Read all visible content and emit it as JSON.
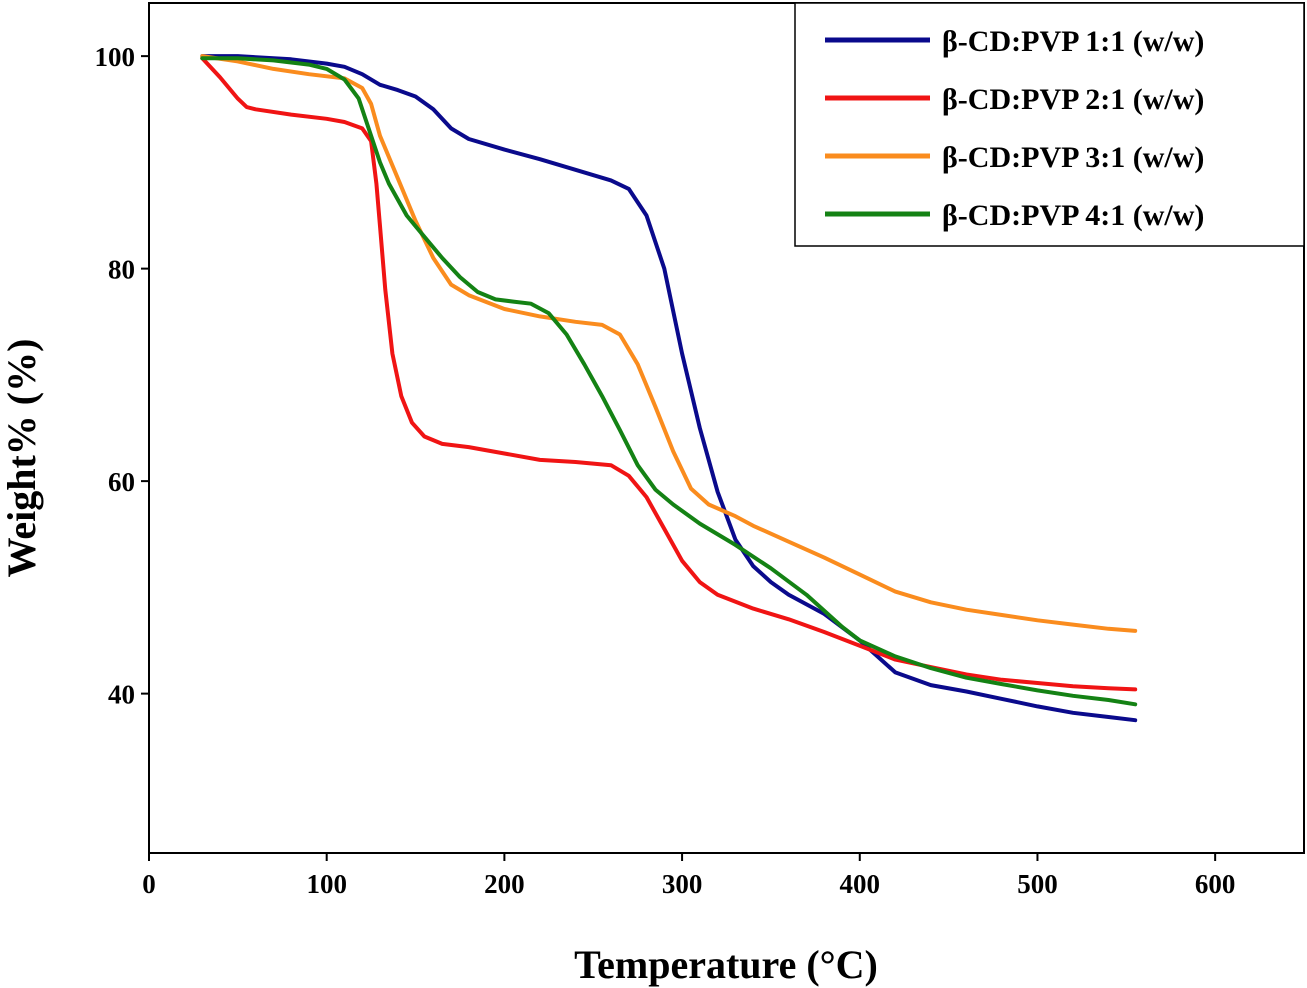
{
  "chart_data": {
    "type": "line",
    "title": "",
    "xlabel": "Temperature (°C)",
    "ylabel": "Weight% (%)",
    "xlim": [
      0,
      650
    ],
    "ylim": [
      25,
      105
    ],
    "x_ticks": [
      0,
      100,
      200,
      300,
      400,
      500,
      600
    ],
    "y_ticks": [
      40,
      60,
      80,
      100
    ],
    "grid": false,
    "legend_position": "top-right",
    "series": [
      {
        "name": "β-CD:PVP 1:1 (w/w)",
        "color": "#0a0a8c",
        "points": [
          [
            30,
            100
          ],
          [
            50,
            100
          ],
          [
            80,
            99.7
          ],
          [
            100,
            99.3
          ],
          [
            110,
            99
          ],
          [
            120,
            98.3
          ],
          [
            130,
            97.3
          ],
          [
            140,
            96.8
          ],
          [
            150,
            96.2
          ],
          [
            160,
            95
          ],
          [
            170,
            93.2
          ],
          [
            180,
            92.2
          ],
          [
            200,
            91.2
          ],
          [
            220,
            90.3
          ],
          [
            240,
            89.3
          ],
          [
            260,
            88.3
          ],
          [
            270,
            87.5
          ],
          [
            280,
            85
          ],
          [
            290,
            80
          ],
          [
            300,
            72
          ],
          [
            310,
            65
          ],
          [
            320,
            59
          ],
          [
            330,
            54.5
          ],
          [
            340,
            52
          ],
          [
            350,
            50.5
          ],
          [
            360,
            49.3
          ],
          [
            380,
            47.5
          ],
          [
            400,
            45
          ],
          [
            420,
            42
          ],
          [
            440,
            40.8
          ],
          [
            460,
            40.2
          ],
          [
            480,
            39.5
          ],
          [
            500,
            38.8
          ],
          [
            520,
            38.2
          ],
          [
            540,
            37.8
          ],
          [
            555,
            37.5
          ]
        ]
      },
      {
        "name": "β-CD:PVP 2:1 (w/w)",
        "color": "#f01414",
        "points": [
          [
            30,
            99.8
          ],
          [
            40,
            98
          ],
          [
            50,
            96
          ],
          [
            55,
            95.2
          ],
          [
            60,
            95
          ],
          [
            80,
            94.5
          ],
          [
            100,
            94.1
          ],
          [
            110,
            93.8
          ],
          [
            120,
            93.2
          ],
          [
            125,
            92
          ],
          [
            128,
            88
          ],
          [
            130,
            84
          ],
          [
            133,
            78
          ],
          [
            137,
            72
          ],
          [
            142,
            68
          ],
          [
            148,
            65.5
          ],
          [
            155,
            64.2
          ],
          [
            165,
            63.5
          ],
          [
            180,
            63.2
          ],
          [
            200,
            62.6
          ],
          [
            220,
            62
          ],
          [
            240,
            61.8
          ],
          [
            260,
            61.5
          ],
          [
            270,
            60.5
          ],
          [
            280,
            58.5
          ],
          [
            290,
            55.5
          ],
          [
            300,
            52.5
          ],
          [
            310,
            50.5
          ],
          [
            320,
            49.3
          ],
          [
            340,
            48
          ],
          [
            360,
            47
          ],
          [
            380,
            45.8
          ],
          [
            400,
            44.5
          ],
          [
            420,
            43.2
          ],
          [
            440,
            42.5
          ],
          [
            460,
            41.8
          ],
          [
            480,
            41.3
          ],
          [
            500,
            41
          ],
          [
            520,
            40.7
          ],
          [
            540,
            40.5
          ],
          [
            555,
            40.4
          ]
        ]
      },
      {
        "name": "β-CD:PVP 3:1 (w/w)",
        "color": "#fa8c1e",
        "points": [
          [
            30,
            100
          ],
          [
            50,
            99.5
          ],
          [
            70,
            98.8
          ],
          [
            90,
            98.3
          ],
          [
            110,
            97.9
          ],
          [
            120,
            97
          ],
          [
            125,
            95.5
          ],
          [
            130,
            92.5
          ],
          [
            140,
            88.5
          ],
          [
            150,
            84.5
          ],
          [
            160,
            81
          ],
          [
            170,
            78.5
          ],
          [
            180,
            77.5
          ],
          [
            200,
            76.2
          ],
          [
            220,
            75.5
          ],
          [
            240,
            75
          ],
          [
            255,
            74.7
          ],
          [
            265,
            73.8
          ],
          [
            275,
            71
          ],
          [
            285,
            67
          ],
          [
            295,
            62.8
          ],
          [
            305,
            59.3
          ],
          [
            315,
            57.8
          ],
          [
            330,
            56.7
          ],
          [
            340,
            55.8
          ],
          [
            360,
            54.3
          ],
          [
            380,
            52.8
          ],
          [
            400,
            51.2
          ],
          [
            420,
            49.6
          ],
          [
            440,
            48.6
          ],
          [
            460,
            47.9
          ],
          [
            480,
            47.4
          ],
          [
            500,
            46.9
          ],
          [
            520,
            46.5
          ],
          [
            540,
            46.1
          ],
          [
            555,
            45.9
          ]
        ]
      },
      {
        "name": "β-CD:PVP 4:1 (w/w)",
        "color": "#148214",
        "points": [
          [
            30,
            99.8
          ],
          [
            50,
            99.8
          ],
          [
            70,
            99.6
          ],
          [
            90,
            99.2
          ],
          [
            100,
            98.8
          ],
          [
            110,
            97.8
          ],
          [
            118,
            96
          ],
          [
            125,
            92.5
          ],
          [
            130,
            90
          ],
          [
            135,
            88
          ],
          [
            145,
            85
          ],
          [
            155,
            83
          ],
          [
            165,
            81
          ],
          [
            175,
            79.2
          ],
          [
            185,
            77.8
          ],
          [
            195,
            77.1
          ],
          [
            205,
            76.9
          ],
          [
            215,
            76.7
          ],
          [
            225,
            75.8
          ],
          [
            235,
            73.8
          ],
          [
            245,
            71
          ],
          [
            255,
            68
          ],
          [
            265,
            64.8
          ],
          [
            275,
            61.5
          ],
          [
            285,
            59.2
          ],
          [
            295,
            57.8
          ],
          [
            310,
            56
          ],
          [
            330,
            54
          ],
          [
            350,
            51.8
          ],
          [
            370,
            49.3
          ],
          [
            390,
            46.3
          ],
          [
            400,
            45
          ],
          [
            420,
            43.5
          ],
          [
            440,
            42.4
          ],
          [
            460,
            41.5
          ],
          [
            480,
            40.9
          ],
          [
            500,
            40.3
          ],
          [
            520,
            39.8
          ],
          [
            540,
            39.4
          ],
          [
            555,
            39
          ]
        ]
      }
    ]
  }
}
